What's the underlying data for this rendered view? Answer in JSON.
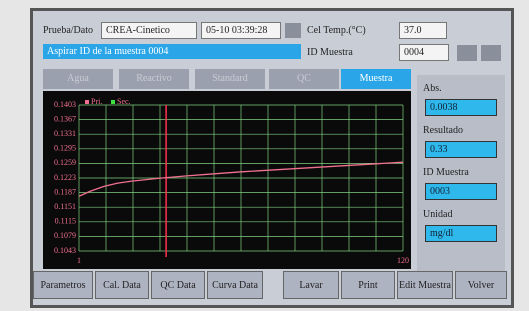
{
  "header": {
    "test_label": "Prueba/Dato",
    "test": "CREA-Cinetico",
    "datetime": "05-10 03:39:28",
    "temp_label": "Cel Temp.(°C)",
    "temp": "37.0",
    "message": "Aspirar ID de la muestra 0004",
    "id_label": "ID Muestra",
    "id": "0004"
  },
  "tabs": [
    "Agua",
    "Reactivo",
    "Standard",
    "QC",
    "Muestra"
  ],
  "active_tab": 4,
  "chart_data": {
    "type": "line",
    "x": [
      1,
      5,
      10,
      15,
      20,
      30,
      40,
      50,
      60,
      70,
      80,
      90,
      100,
      110,
      120
    ],
    "series": [
      {
        "name": "Pri.",
        "color": "#f07090",
        "values": [
          0.1178,
          0.119,
          0.1202,
          0.121,
          0.1215,
          0.1222,
          0.1228,
          0.1233,
          0.1238,
          0.1242,
          0.1246,
          0.125,
          0.1254,
          0.1258,
          0.1262
        ]
      },
      {
        "name": "Sec.",
        "color": "#40e040",
        "values": [
          null,
          null,
          null,
          null,
          null,
          null,
          null,
          null,
          null,
          null,
          null,
          null,
          null,
          null,
          null
        ]
      }
    ],
    "vline_x": 33,
    "xlim": [
      1,
      120
    ],
    "xticks": [
      1,
      120
    ],
    "ylim": [
      0.1043,
      0.1403
    ],
    "yticks": [
      0.1043,
      0.1079,
      0.1115,
      0.1151,
      0.1187,
      0.1223,
      0.1259,
      0.1295,
      0.1331,
      0.1367,
      0.1403
    ],
    "grid": true
  },
  "results": {
    "abs_label": "Abs.",
    "abs": "0.0038",
    "result_label": "Resultado",
    "result": "0.33",
    "id_label": "ID Muestra",
    "id": "0003",
    "unit_label": "Unidad",
    "unit": "mg/dl"
  },
  "buttons": [
    "Parametros",
    "Cal. Data",
    "QC Data",
    "Curva Data",
    "Lavar",
    "Print",
    "Edit Muestra",
    "Volver"
  ]
}
